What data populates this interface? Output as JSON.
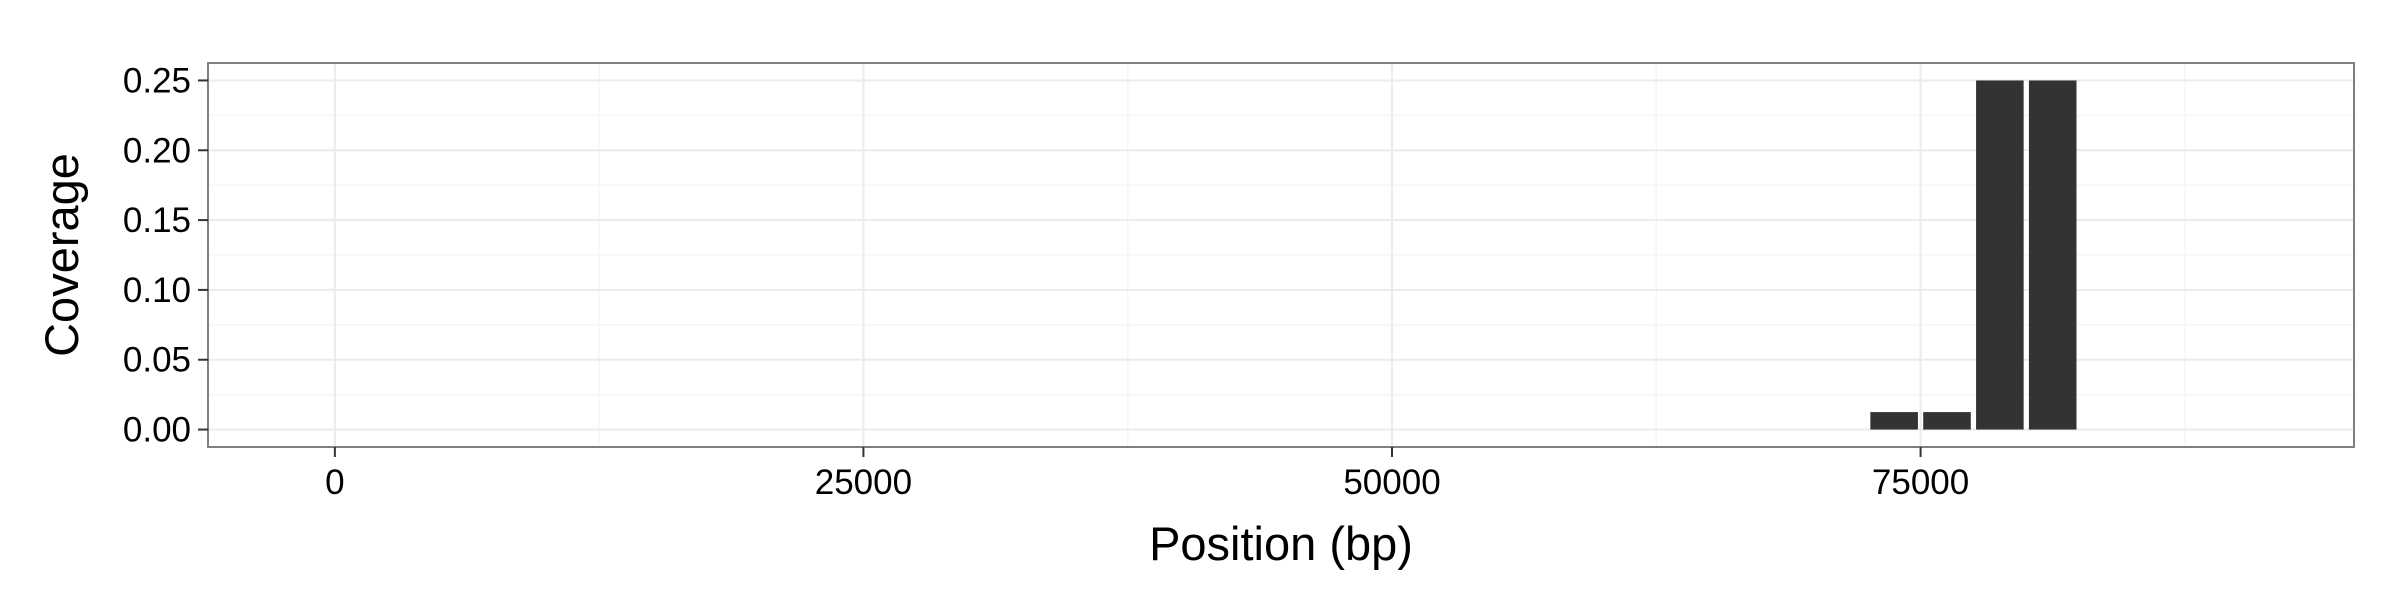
{
  "chart_data": {
    "type": "bar",
    "title": "",
    "xlabel": "Position (bp)",
    "ylabel": "Coverage",
    "x": [
      73750,
      76250,
      78750,
      81250
    ],
    "values": [
      0.0125,
      0.0125,
      0.25,
      0.25
    ],
    "bin_width": 2500,
    "xlim": [
      -6000,
      95500
    ],
    "ylim": [
      -0.0125,
      0.2625
    ],
    "x_ticks": [
      0,
      25000,
      50000,
      75000
    ],
    "x_tick_labels": [
      "0",
      "25000",
      "50000",
      "75000"
    ],
    "y_ticks": [
      0,
      0.05,
      0.1,
      0.15,
      0.2,
      0.25
    ],
    "y_tick_labels": [
      "0.00",
      "0.05",
      "0.10",
      "0.15",
      "0.20",
      "0.25"
    ],
    "grid": true,
    "legend": "none"
  },
  "colors": {
    "bar": "#333333",
    "panel_border": "#7f7f7f",
    "grid_major": "#ebebeb",
    "grid_minor": "#f5f5f5",
    "tick": "#333333"
  }
}
